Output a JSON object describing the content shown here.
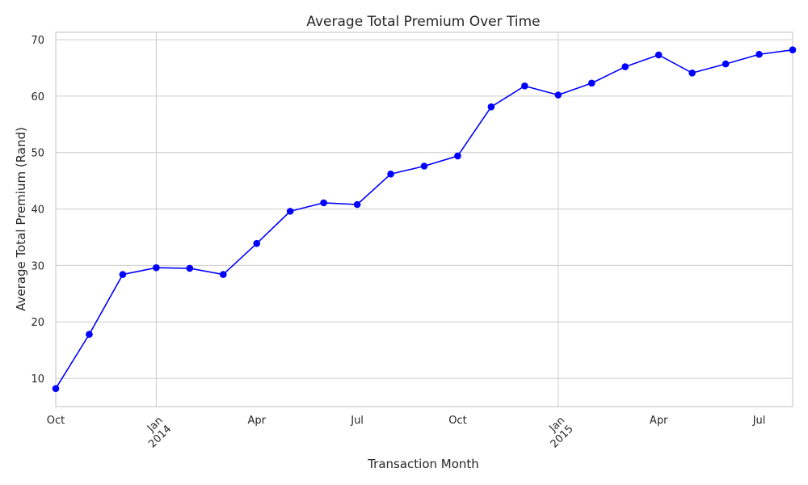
{
  "chart_data": {
    "type": "line",
    "title": "Average Total Premium Over Time",
    "xlabel": "Transaction Month",
    "ylabel": "Average Total Premium (Rand)",
    "x": [
      "2013-10",
      "2013-11",
      "2013-12",
      "2014-01",
      "2014-02",
      "2014-03",
      "2014-04",
      "2014-05",
      "2014-06",
      "2014-07",
      "2014-08",
      "2014-09",
      "2014-10",
      "2014-11",
      "2014-12",
      "2015-01",
      "2015-02",
      "2015-03",
      "2015-04",
      "2015-05",
      "2015-06",
      "2015-07",
      "2015-08"
    ],
    "series": [
      {
        "color": "#0000ff",
        "values": [
          8.2,
          17.8,
          28.4,
          29.6,
          29.5,
          28.4,
          33.9,
          39.6,
          41.1,
          40.8,
          46.2,
          47.6,
          49.4,
          58.1,
          61.8,
          60.2,
          62.3,
          65.2,
          67.3,
          64.1,
          65.7,
          67.4,
          68.2
        ]
      }
    ],
    "ylim": [
      5,
      71.3
    ],
    "yticks": [
      10,
      20,
      30,
      40,
      50,
      60,
      70
    ],
    "xticks": [
      {
        "month_index": 0,
        "lines": [
          "Oct"
        ]
      },
      {
        "month_index": 3,
        "lines": [
          "Jan",
          "2014"
        ],
        "major": true
      },
      {
        "month_index": 6,
        "lines": [
          "Apr"
        ]
      },
      {
        "month_index": 9,
        "lines": [
          "Jul"
        ]
      },
      {
        "month_index": 12,
        "lines": [
          "Oct"
        ]
      },
      {
        "month_index": 15,
        "lines": [
          "Jan",
          "2015"
        ],
        "major": true
      },
      {
        "month_index": 18,
        "lines": [
          "Apr"
        ]
      },
      {
        "month_index": 21,
        "lines": [
          "Jul"
        ]
      }
    ],
    "grid": true,
    "marker": "circle",
    "colors": {
      "line": "#0000ff",
      "grid": "#cccccc",
      "spine": "#cccccc",
      "text": "#262626"
    }
  }
}
